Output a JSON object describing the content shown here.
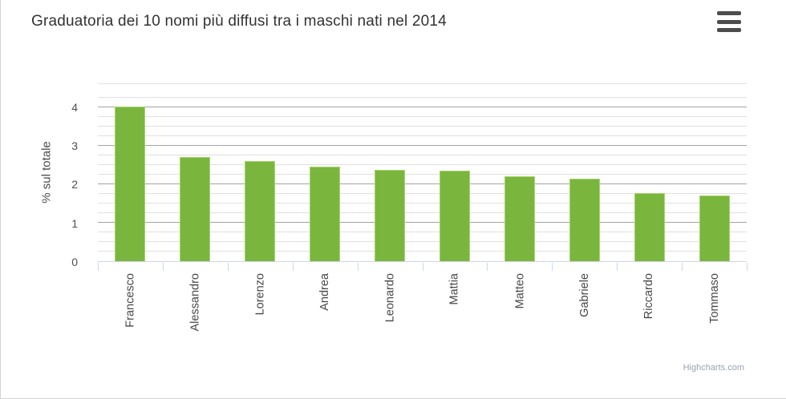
{
  "header": {
    "title": "Graduatoria dei 10 nomi più diffusi tra i maschi nati nel 2014",
    "menu_icon": "hamburger-icon"
  },
  "chart_data": {
    "type": "bar",
    "title": "Graduatoria dei 10 nomi più diffusi tra i maschi nati nel 2014",
    "categories": [
      "Francesco",
      "Alessandro",
      "Lorenzo",
      "Andrea",
      "Leonardo",
      "Mattia",
      "Matteo",
      "Gabriele",
      "Riccardo",
      "Tommaso"
    ],
    "values": [
      4.01,
      2.71,
      2.61,
      2.45,
      2.37,
      2.36,
      2.2,
      2.14,
      1.77,
      1.71
    ],
    "xlabel": "",
    "ylabel": "% sul totale",
    "yticks": [
      0,
      1,
      2,
      3,
      4
    ],
    "ylim": [
      0,
      4.6
    ],
    "minor_tick_interval": 0.25,
    "grid": true,
    "legend": "none",
    "bar_color": "#7ab63d",
    "bar_border_color": "#a9d36e",
    "major_grid_color": "#a4a4a4",
    "minor_grid_color": "#e0e0e0",
    "axis_line_color": "#ccd6eb",
    "credits_label": "Highcharts.com"
  }
}
